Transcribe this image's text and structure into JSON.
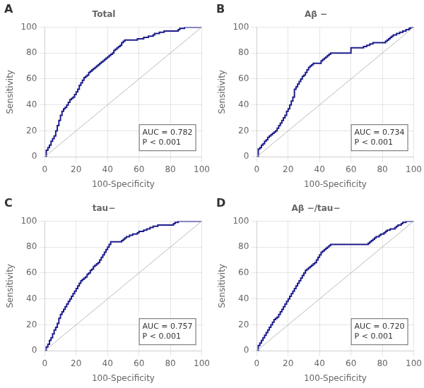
{
  "chart_data": [
    {
      "type": "line",
      "panel_label": "A",
      "title": "Total",
      "x_label": "100-Specificity",
      "y_label": "Sensitivity",
      "xlim": [
        0,
        100
      ],
      "ylim": [
        0,
        100
      ],
      "xticks": [
        0,
        20,
        40,
        60,
        80,
        100
      ],
      "yticks": [
        0,
        20,
        40,
        60,
        80,
        100
      ],
      "grid": true,
      "annotations": [
        "AUC = 0.782",
        "P < 0.001"
      ],
      "series": [
        {
          "color": "#bbbbbb",
          "x": [
            0,
            100
          ],
          "values": [
            0,
            100
          ]
        },
        {
          "color": "#1c1c8c",
          "line_style": "step",
          "x": [
            0,
            1,
            2,
            3,
            4,
            5,
            6,
            7,
            8,
            9,
            10,
            11,
            12,
            13,
            14,
            15,
            16,
            17,
            18,
            19,
            20,
            21,
            22,
            23,
            24,
            25,
            26,
            27,
            28,
            29,
            30,
            31,
            32,
            33,
            34,
            35,
            36,
            37,
            38,
            39,
            40,
            41,
            42,
            43,
            44,
            45,
            46,
            47,
            48,
            49,
            50,
            51,
            52,
            53,
            54,
            55,
            56,
            57,
            58,
            59,
            60,
            61,
            62,
            63,
            64,
            65,
            66,
            67,
            68,
            69,
            70,
            71,
            72,
            73,
            74,
            75,
            76,
            77,
            78,
            79,
            80,
            81,
            82,
            83,
            84,
            85,
            86,
            87,
            88,
            89,
            90,
            91,
            92,
            93,
            94,
            95,
            96,
            97,
            98,
            99,
            100
          ],
          "values": [
            0,
            5,
            7,
            9,
            12,
            14,
            16,
            20,
            24,
            28,
            32,
            35,
            37,
            38,
            40,
            42,
            44,
            45,
            46,
            48,
            50,
            52,
            55,
            57,
            59,
            61,
            62,
            63,
            65,
            66,
            67,
            68,
            69,
            70,
            71,
            72,
            73,
            74,
            75,
            76,
            77,
            78,
            79,
            80,
            82,
            83,
            84,
            85,
            86,
            88,
            89,
            90,
            90,
            90,
            90,
            90,
            90,
            90,
            90,
            91,
            91,
            91,
            91,
            92,
            92,
            92,
            93,
            93,
            93,
            94,
            95,
            95,
            95,
            96,
            96,
            96,
            97,
            97,
            97,
            97,
            97,
            97,
            97,
            97,
            97,
            98,
            99,
            99,
            99,
            100,
            100,
            100,
            100,
            100,
            100,
            100,
            100,
            100,
            100,
            100,
            100
          ]
        }
      ]
    },
    {
      "type": "line",
      "panel_label": "B",
      "title": "Aβ −",
      "x_label": "100-Specificity",
      "y_label": "Sensitivity",
      "xlim": [
        0,
        100
      ],
      "ylim": [
        0,
        100
      ],
      "xticks": [
        0,
        20,
        40,
        60,
        80,
        100
      ],
      "yticks": [
        0,
        20,
        40,
        60,
        80,
        100
      ],
      "grid": true,
      "annotations": [
        "AUC = 0.734",
        "P < 0.001"
      ],
      "series": [
        {
          "color": "#bbbbbb",
          "x": [
            0,
            100
          ],
          "values": [
            0,
            100
          ]
        },
        {
          "color": "#1c1c8c",
          "line_style": "step",
          "x": [
            0,
            1,
            2,
            3,
            4,
            5,
            6,
            7,
            8,
            9,
            10,
            11,
            12,
            13,
            14,
            15,
            16,
            17,
            18,
            19,
            20,
            21,
            22,
            23,
            24,
            25,
            26,
            27,
            28,
            29,
            30,
            31,
            32,
            33,
            34,
            35,
            36,
            37,
            38,
            39,
            40,
            41,
            42,
            43,
            44,
            45,
            46,
            47,
            48,
            49,
            50,
            51,
            52,
            53,
            54,
            55,
            56,
            57,
            58,
            59,
            60,
            61,
            62,
            63,
            64,
            65,
            66,
            67,
            68,
            69,
            70,
            71,
            72,
            73,
            74,
            75,
            76,
            77,
            78,
            79,
            80,
            81,
            82,
            83,
            84,
            85,
            86,
            87,
            88,
            89,
            90,
            91,
            92,
            93,
            94,
            95,
            96,
            97,
            98,
            99,
            100
          ],
          "values": [
            0,
            6,
            7,
            9,
            10,
            12,
            13,
            15,
            16,
            17,
            18,
            19,
            20,
            22,
            24,
            26,
            28,
            30,
            32,
            35,
            37,
            40,
            43,
            46,
            52,
            54,
            56,
            58,
            60,
            62,
            63,
            65,
            67,
            69,
            70,
            71,
            72,
            72,
            72,
            72,
            72,
            74,
            75,
            76,
            77,
            78,
            79,
            80,
            80,
            80,
            80,
            80,
            80,
            80,
            80,
            80,
            80,
            80,
            80,
            80,
            84,
            84,
            84,
            84,
            84,
            84,
            84,
            84,
            85,
            85,
            86,
            86,
            87,
            87,
            88,
            88,
            88,
            88,
            88,
            88,
            88,
            88,
            89,
            90,
            91,
            92,
            93,
            94,
            94,
            95,
            95,
            96,
            96,
            97,
            97,
            98,
            98,
            99,
            100,
            100,
            100
          ]
        }
      ]
    },
    {
      "type": "line",
      "panel_label": "C",
      "title": "tau−",
      "x_label": "100-Specificity",
      "y_label": "Sensitivity",
      "xlim": [
        0,
        100
      ],
      "ylim": [
        0,
        100
      ],
      "xticks": [
        0,
        20,
        40,
        60,
        80,
        100
      ],
      "yticks": [
        0,
        20,
        40,
        60,
        80,
        100
      ],
      "grid": true,
      "annotations": [
        "AUC = 0.757",
        "P < 0.001"
      ],
      "series": [
        {
          "color": "#bbbbbb",
          "x": [
            0,
            100
          ],
          "values": [
            0,
            100
          ]
        },
        {
          "color": "#1c1c8c",
          "line_style": "step",
          "x": [
            0,
            1,
            2,
            3,
            4,
            5,
            6,
            7,
            8,
            9,
            10,
            11,
            12,
            13,
            14,
            15,
            16,
            17,
            18,
            19,
            20,
            21,
            22,
            23,
            24,
            25,
            26,
            27,
            28,
            29,
            30,
            31,
            32,
            33,
            34,
            35,
            36,
            37,
            38,
            39,
            40,
            41,
            42,
            43,
            44,
            45,
            46,
            47,
            48,
            49,
            50,
            51,
            52,
            53,
            54,
            55,
            56,
            57,
            58,
            59,
            60,
            61,
            62,
            63,
            64,
            65,
            66,
            67,
            68,
            69,
            70,
            71,
            72,
            73,
            74,
            75,
            76,
            77,
            78,
            79,
            80,
            81,
            82,
            83,
            84,
            85,
            86,
            87,
            88,
            89,
            90,
            91,
            92,
            93,
            94,
            95,
            96,
            97,
            98,
            99,
            100
          ],
          "values": [
            0,
            3,
            5,
            8,
            10,
            13,
            16,
            18,
            21,
            25,
            28,
            30,
            32,
            34,
            36,
            38,
            40,
            42,
            44,
            46,
            48,
            50,
            52,
            54,
            55,
            56,
            57,
            59,
            60,
            62,
            63,
            65,
            66,
            67,
            68,
            70,
            72,
            74,
            76,
            78,
            80,
            82,
            84,
            84,
            84,
            84,
            84,
            84,
            84,
            85,
            86,
            87,
            88,
            88,
            89,
            89,
            90,
            90,
            90,
            91,
            92,
            92,
            92,
            93,
            93,
            94,
            94,
            95,
            95,
            96,
            96,
            96,
            97,
            97,
            97,
            97,
            97,
            97,
            97,
            97,
            97,
            97,
            98,
            99,
            99,
            100,
            100,
            100,
            100,
            100,
            100,
            100,
            100,
            100,
            100,
            100,
            100,
            100,
            100,
            100,
            100
          ]
        }
      ]
    },
    {
      "type": "line",
      "panel_label": "D",
      "title": "Aβ −/tau−",
      "x_label": "100-Specificity",
      "y_label": "Sensitivity",
      "xlim": [
        0,
        100
      ],
      "ylim": [
        0,
        100
      ],
      "xticks": [
        0,
        20,
        40,
        60,
        80,
        100
      ],
      "yticks": [
        0,
        20,
        40,
        60,
        80,
        100
      ],
      "grid": true,
      "annotations": [
        "AUC = 0.720",
        "P < 0.001"
      ],
      "series": [
        {
          "color": "#bbbbbb",
          "x": [
            0,
            100
          ],
          "values": [
            0,
            100
          ]
        },
        {
          "color": "#1c1c8c",
          "line_style": "step",
          "x": [
            0,
            1,
            2,
            3,
            4,
            5,
            6,
            7,
            8,
            9,
            10,
            11,
            12,
            13,
            14,
            15,
            16,
            17,
            18,
            19,
            20,
            21,
            22,
            23,
            24,
            25,
            26,
            27,
            28,
            29,
            30,
            31,
            32,
            33,
            34,
            35,
            36,
            37,
            38,
            39,
            40,
            41,
            42,
            43,
            44,
            45,
            46,
            47,
            48,
            49,
            50,
            51,
            52,
            53,
            54,
            55,
            56,
            57,
            58,
            59,
            60,
            61,
            62,
            63,
            64,
            65,
            66,
            67,
            68,
            69,
            70,
            71,
            72,
            73,
            74,
            75,
            76,
            77,
            78,
            79,
            80,
            81,
            82,
            83,
            84,
            85,
            86,
            87,
            88,
            89,
            90,
            91,
            92,
            93,
            94,
            95,
            96,
            97,
            98,
            99,
            100
          ],
          "values": [
            0,
            4,
            6,
            8,
            10,
            12,
            14,
            16,
            18,
            20,
            22,
            24,
            25,
            26,
            28,
            30,
            32,
            34,
            36,
            38,
            40,
            42,
            44,
            46,
            48,
            50,
            52,
            54,
            56,
            58,
            60,
            62,
            63,
            64,
            65,
            66,
            67,
            68,
            70,
            72,
            74,
            76,
            77,
            78,
            79,
            80,
            81,
            82,
            82,
            82,
            82,
            82,
            82,
            82,
            82,
            82,
            82,
            82,
            82,
            82,
            82,
            82,
            82,
            82,
            82,
            82,
            82,
            82,
            82,
            82,
            82,
            83,
            84,
            85,
            86,
            87,
            88,
            88,
            89,
            90,
            90,
            91,
            92,
            93,
            93,
            94,
            94,
            94,
            95,
            96,
            97,
            97,
            98,
            99,
            99,
            100,
            100,
            100,
            100,
            100,
            100
          ]
        }
      ]
    }
  ]
}
